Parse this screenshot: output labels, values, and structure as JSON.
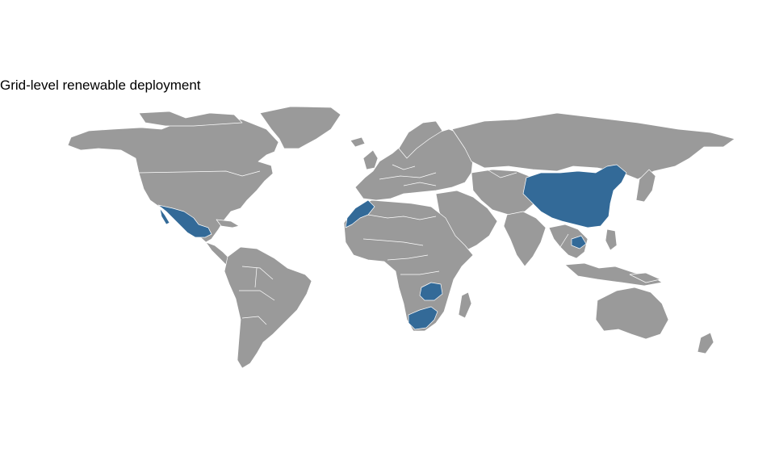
{
  "title": "Grid-level renewable deployment",
  "colors": {
    "land": "#9a9a9a",
    "highlight": "#336a98",
    "border": "#ffffff",
    "background": "#ffffff"
  },
  "highlighted_countries": [
    "Mexico",
    "Morocco",
    "China",
    "Cambodia",
    "Zambia",
    "South Africa"
  ]
}
